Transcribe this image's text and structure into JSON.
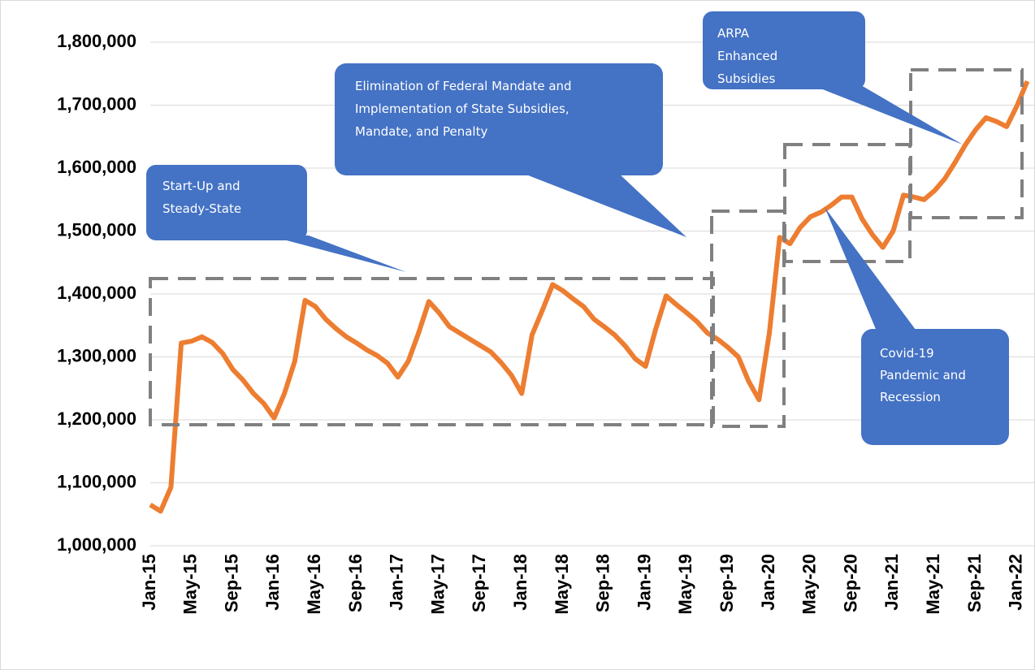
{
  "chart_data": {
    "type": "line",
    "categories": [
      "Jan-15",
      null,
      null,
      null,
      "May-15",
      null,
      null,
      null,
      "Sep-15",
      null,
      null,
      null,
      "Jan-16",
      null,
      null,
      null,
      "May-16",
      null,
      null,
      null,
      "Sep-16",
      null,
      null,
      null,
      "Jan-17",
      null,
      null,
      null,
      "May-17",
      null,
      null,
      null,
      "Sep-17",
      null,
      null,
      null,
      "Jan-18",
      null,
      null,
      null,
      "May-18",
      null,
      null,
      null,
      "Sep-18",
      null,
      null,
      null,
      "Jan-19",
      null,
      null,
      null,
      "May-19",
      null,
      null,
      null,
      "Sep-19",
      null,
      null,
      null,
      "Jan-20",
      null,
      null,
      null,
      "May-20",
      null,
      null,
      null,
      "Sep-20",
      null,
      null,
      null,
      "Jan-21",
      null,
      null,
      null,
      "May-21",
      null,
      null,
      null,
      "Sep-21",
      null,
      null,
      null,
      "Jan-22",
      null
    ],
    "series": [
      {
        "color": "#ed7d31",
        "values": [
          1065000,
          1055000,
          1093000,
          1322000,
          1325000,
          1332000,
          1323000,
          1306000,
          1280000,
          1263000,
          1242000,
          1226000,
          1203000,
          1242000,
          1293000,
          1390000,
          1380000,
          1360000,
          1345000,
          1332000,
          1322000,
          1311000,
          1302000,
          1290000,
          1268000,
          1293000,
          1338000,
          1388000,
          1370000,
          1348000,
          1338000,
          1328000,
          1318000,
          1308000,
          1291000,
          1271000,
          1242000,
          1335000,
          1374000,
          1415000,
          1405000,
          1392000,
          1380000,
          1360000,
          1348000,
          1335000,
          1318000,
          1297000,
          1285000,
          1345000,
          1397000,
          1383000,
          1370000,
          1356000,
          1338000,
          1328000,
          1315000,
          1300000,
          1261000,
          1232000,
          1338000,
          1490000,
          1480000,
          1506000,
          1523000,
          1530000,
          1541000,
          1554000,
          1554000,
          1519000,
          1494000,
          1474000,
          1500000,
          1557000,
          1554000,
          1550000,
          1564000,
          1583000,
          1609000,
          1637000,
          1661000,
          1680000,
          1674000,
          1666000,
          1699000,
          1738000
        ]
      }
    ],
    "ylim": [
      1000000,
      1800000
    ],
    "yticks": [
      {
        "value": 1000000,
        "label": "1,000,000"
      },
      {
        "value": 1100000,
        "label": "1,100,000"
      },
      {
        "value": 1200000,
        "label": "1,200,000"
      },
      {
        "value": 1300000,
        "label": "1,300,000"
      },
      {
        "value": 1400000,
        "label": "1,400,000"
      },
      {
        "value": 1500000,
        "label": "1,500,000"
      },
      {
        "value": 1600000,
        "label": "1,600,000"
      },
      {
        "value": 1700000,
        "label": "1,700,000"
      },
      {
        "value": 1800000,
        "label": "1,800,000"
      }
    ],
    "grid": true,
    "annotations": [
      {
        "lines": [
          "Start-Up and",
          "Steady-State"
        ]
      },
      {
        "lines": [
          "Elimination of Federal Mandate and",
          "Implementation of State Subsidies,",
          "Mandate, and Penalty"
        ]
      },
      {
        "lines": [
          "ARPA",
          "Enhanced",
          "Subsidies"
        ]
      },
      {
        "lines": [
          "Covid-19",
          "Pandemic and",
          "Recession"
        ]
      }
    ]
  }
}
